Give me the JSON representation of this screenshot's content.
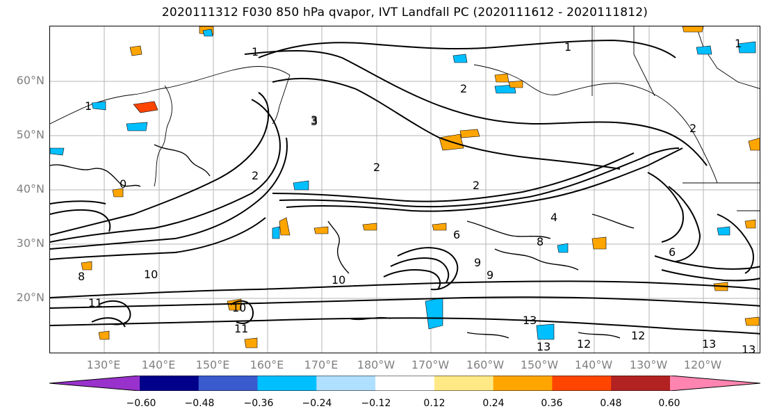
{
  "title": "2020111312 F030 850 hPa qvapor, IVT Landfall PC (2020111612 - 2020111812)",
  "lat_labels": [
    "60°N",
    "50°N",
    "40°N",
    "30°N",
    "20°N"
  ],
  "lon_labels": [
    "130°E",
    "140°E",
    "150°E",
    "160°E",
    "170°E",
    "180°W",
    "170°W",
    "160°W",
    "150°W",
    "140°W",
    "130°W",
    "120°W"
  ],
  "colorbar": {
    "colors": [
      "#9932cc",
      "#00008b",
      "#3a5bcd",
      "#00bfff",
      "#b0e0ff",
      "#ffffff",
      "#ffe987",
      "#ffa500",
      "#ff4500",
      "#b22222",
      "#ff85b0"
    ],
    "ticks": [
      "−0.60",
      "−0.48",
      "−0.36",
      "−0.24",
      "−0.12",
      "0.12",
      "0.24",
      "0.36",
      "0.48",
      "0.60"
    ]
  },
  "contour_labels": [
    "1",
    "1",
    "1",
    "2",
    "2",
    "2",
    "2",
    "2",
    "3",
    "4",
    "6",
    "6",
    "8",
    "8",
    "9",
    "9",
    "10",
    "10",
    "10",
    "11",
    "11",
    "12",
    "12",
    "13",
    "13",
    "13",
    "13",
    "3",
    "1",
    "0"
  ]
}
